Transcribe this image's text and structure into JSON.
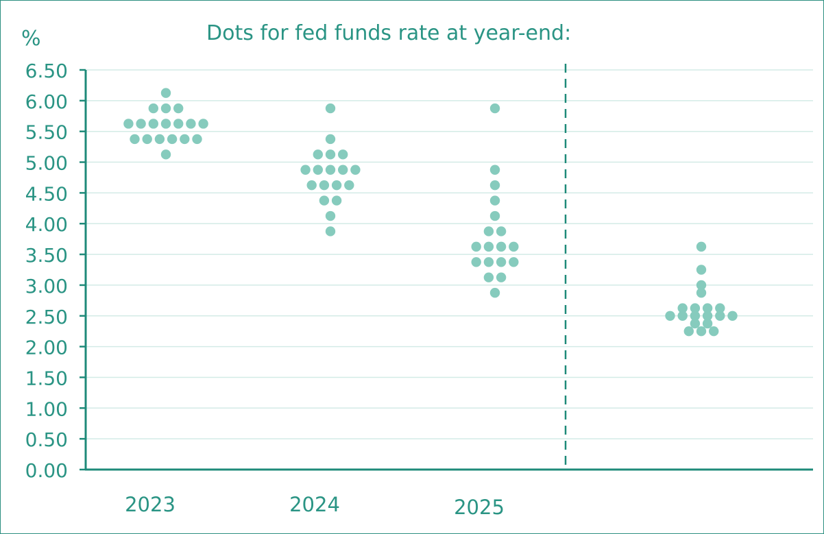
{
  "chart_data": {
    "type": "scatter",
    "title": "Dots for fed funds rate at year-end:",
    "ylabel": "%",
    "xlabel": "",
    "ylim": [
      0,
      6.5
    ],
    "yticks": [
      "0.00",
      "0.50",
      "1.00",
      "1.50",
      "2.00",
      "2.50",
      "3.00",
      "3.50",
      "4.00",
      "4.50",
      "5.00",
      "5.50",
      "6.00",
      "6.50"
    ],
    "grid": true,
    "categories": [
      "2023",
      "2024",
      "2025"
    ],
    "series": [
      {
        "category": "2023",
        "rows": [
          {
            "y": 6.125,
            "count": 1
          },
          {
            "y": 5.875,
            "count": 3
          },
          {
            "y": 5.625,
            "count": 7
          },
          {
            "y": 5.375,
            "count": 6
          },
          {
            "y": 5.125,
            "count": 1
          }
        ]
      },
      {
        "category": "2024",
        "rows": [
          {
            "y": 5.875,
            "count": 1
          },
          {
            "y": 5.375,
            "count": 1
          },
          {
            "y": 5.125,
            "count": 3
          },
          {
            "y": 4.875,
            "count": 5
          },
          {
            "y": 4.625,
            "count": 4
          },
          {
            "y": 4.375,
            "count": 2
          },
          {
            "y": 4.125,
            "count": 1
          },
          {
            "y": 3.875,
            "count": 1
          }
        ]
      },
      {
        "category": "2025",
        "rows": [
          {
            "y": 5.875,
            "count": 1
          },
          {
            "y": 4.875,
            "count": 1
          },
          {
            "y": 4.625,
            "count": 1
          },
          {
            "y": 4.375,
            "count": 1
          },
          {
            "y": 4.125,
            "count": 1
          },
          {
            "y": 3.875,
            "count": 2
          },
          {
            "y": 3.625,
            "count": 4
          },
          {
            "y": 3.375,
            "count": 4
          },
          {
            "y": 3.125,
            "count": 2
          },
          {
            "y": 2.875,
            "count": 1
          }
        ]
      },
      {
        "category": "",
        "rows": [
          {
            "y": 3.625,
            "count": 1
          },
          {
            "y": 3.25,
            "count": 1
          },
          {
            "y": 3.0,
            "count": 1
          },
          {
            "y": 2.875,
            "count": 1
          },
          {
            "y": 2.625,
            "count": 4
          },
          {
            "y": 2.5,
            "count": 6
          },
          {
            "y": 2.375,
            "count": 2
          },
          {
            "y": 2.25,
            "count": 3
          }
        ]
      }
    ],
    "colors": {
      "dot": "#86cbbd",
      "axis": "#1e8a79",
      "text": "#2a9484",
      "grid": "#d3ebe6"
    }
  }
}
